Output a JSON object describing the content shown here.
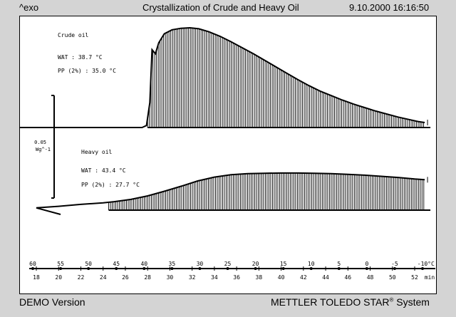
{
  "header": {
    "exo_label": "^exo",
    "title": "Crystallization of Crude and Heavy Oil",
    "datetime": "9.10.2000 16:16:50"
  },
  "footer": {
    "left": "DEMO Version",
    "right_prefix": "METTLER  TOLEDO  STAR",
    "right_suffix": "System"
  },
  "scale_bar": {
    "value": "0.05",
    "unit": "Wg^-1"
  },
  "chart_data": {
    "type": "line",
    "title": "Crystallization of Crude and Heavy Oil",
    "xlabel": "",
    "ylabel": "",
    "x_axis": {
      "unit": "min",
      "range": [
        16,
        54
      ],
      "ticks": [
        18,
        20,
        22,
        24,
        26,
        28,
        30,
        32,
        34,
        36,
        38,
        40,
        42,
        44,
        46,
        48,
        50,
        52
      ]
    },
    "temperature_axis": {
      "unit": "°C",
      "ticks": [
        60,
        55,
        50,
        45,
        40,
        35,
        30,
        25,
        20,
        15,
        10,
        5,
        0,
        -5,
        -10
      ]
    },
    "series": [
      {
        "name": "Crude oil",
        "annotations": [
          "WAT : 38.7 °C",
          "PP (2%) : 35.0 °C"
        ],
        "values": [
          [
            16.0,
            0.0
          ],
          [
            26.0,
            0.0
          ],
          [
            27.5,
            0.0
          ],
          [
            27.9,
            0.02
          ],
          [
            28.2,
            0.25
          ],
          [
            28.4,
            0.78
          ],
          [
            28.7,
            0.74
          ],
          [
            29.0,
            0.85
          ],
          [
            29.5,
            0.94
          ],
          [
            30.2,
            0.98
          ],
          [
            31.0,
            0.995
          ],
          [
            31.8,
            1.0
          ],
          [
            32.6,
            0.99
          ],
          [
            33.5,
            0.96
          ],
          [
            34.5,
            0.915
          ],
          [
            35.5,
            0.86
          ],
          [
            36.5,
            0.8
          ],
          [
            37.5,
            0.74
          ],
          [
            38.5,
            0.675
          ],
          [
            39.5,
            0.61
          ],
          [
            40.5,
            0.545
          ],
          [
            41.5,
            0.48
          ],
          [
            42.5,
            0.42
          ],
          [
            43.5,
            0.365
          ],
          [
            44.5,
            0.32
          ],
          [
            45.5,
            0.275
          ],
          [
            46.5,
            0.235
          ],
          [
            47.5,
            0.2
          ],
          [
            48.5,
            0.165
          ],
          [
            49.5,
            0.135
          ],
          [
            50.5,
            0.105
          ],
          [
            51.5,
            0.08
          ],
          [
            52.3,
            0.06
          ],
          [
            52.9,
            0.05
          ]
        ]
      },
      {
        "name": "Heavy oil",
        "annotations": [
          "WAT : 43.4 °C",
          "PP (2%) : 27.7 °C"
        ],
        "values": [
          [
            16.0,
            0.0
          ],
          [
            18.0,
            0.06
          ],
          [
            20.0,
            0.1
          ],
          [
            22.0,
            0.15
          ],
          [
            24.0,
            0.19
          ],
          [
            25.0,
            0.22
          ],
          [
            26.5,
            0.28
          ],
          [
            28.0,
            0.37
          ],
          [
            29.5,
            0.49
          ],
          [
            31.0,
            0.62
          ],
          [
            32.5,
            0.76
          ],
          [
            34.0,
            0.86
          ],
          [
            35.5,
            0.92
          ],
          [
            37.0,
            0.95
          ],
          [
            38.5,
            0.96
          ],
          [
            40.0,
            0.965
          ],
          [
            41.5,
            0.965
          ],
          [
            43.0,
            0.96
          ],
          [
            44.5,
            0.95
          ],
          [
            46.0,
            0.93
          ],
          [
            47.5,
            0.91
          ],
          [
            49.0,
            0.88
          ],
          [
            50.5,
            0.85
          ],
          [
            52.0,
            0.81
          ],
          [
            52.9,
            0.79
          ]
        ]
      }
    ],
    "grid": false,
    "legend": "inline labels"
  }
}
